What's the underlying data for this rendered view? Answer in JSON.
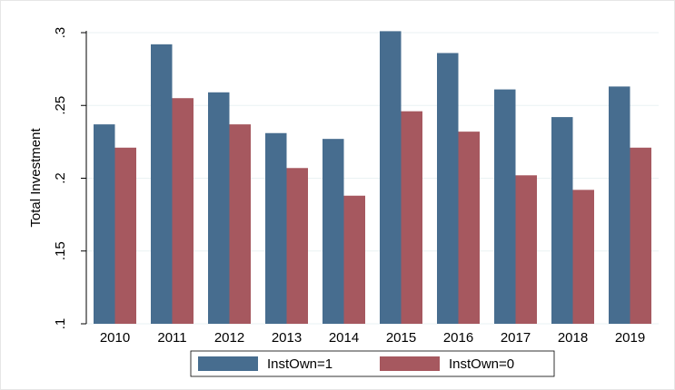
{
  "chart_data": {
    "type": "bar",
    "y_label": "Total Investment",
    "categories": [
      "2010",
      "2011",
      "2012",
      "2013",
      "2014",
      "2015",
      "2016",
      "2017",
      "2018",
      "2019"
    ],
    "series": [
      {
        "name": "InstOwn=1",
        "color": "#476d8f",
        "values": [
          0.237,
          0.292,
          0.259,
          0.231,
          0.227,
          0.301,
          0.286,
          0.261,
          0.242,
          0.263
        ]
      },
      {
        "name": "InstOwn=0",
        "color": "#a6585f",
        "values": [
          0.221,
          0.255,
          0.237,
          0.207,
          0.188,
          0.246,
          0.232,
          0.202,
          0.192,
          0.221
        ]
      }
    ],
    "ylim": [
      0.1,
      0.3
    ],
    "yticks": [
      {
        "value": 0.1,
        "label": ".1"
      },
      {
        "value": 0.15,
        "label": ".15"
      },
      {
        "value": 0.2,
        "label": ".2"
      },
      {
        "value": 0.25,
        "label": ".25"
      },
      {
        "value": 0.3,
        "label": ".3"
      }
    ],
    "grid": true,
    "legend": "bottom"
  }
}
